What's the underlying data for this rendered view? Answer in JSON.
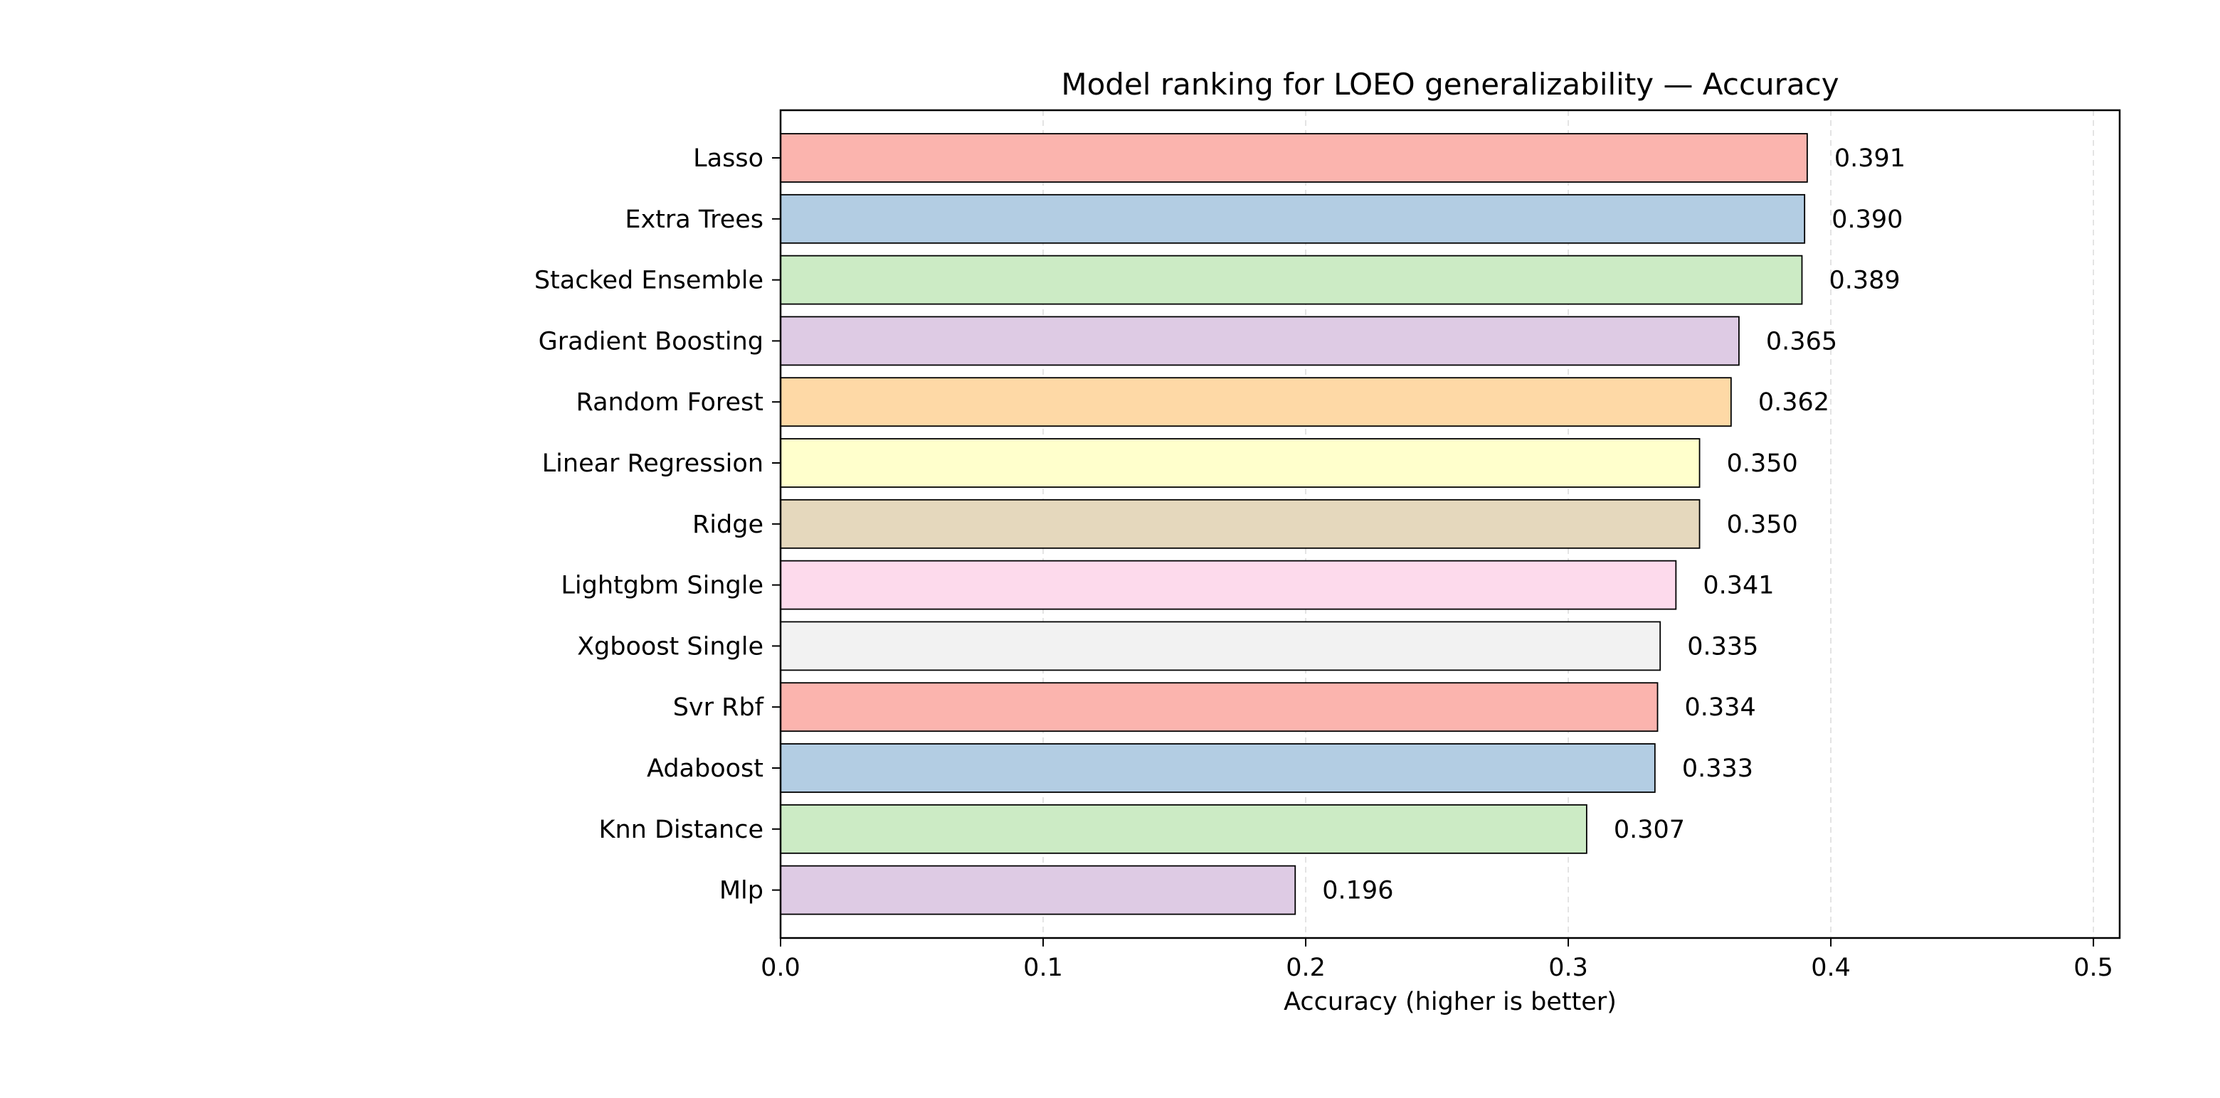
{
  "chart_data": {
    "type": "bar",
    "orientation": "horizontal",
    "title": "Model ranking for LOEO generalizability — Accuracy",
    "xlabel": "Accuracy (higher is better)",
    "ylabel": "",
    "xlim": [
      0.0,
      0.51
    ],
    "xticks": [
      0.0,
      0.1,
      0.2,
      0.3,
      0.4,
      0.5
    ],
    "xtick_labels": [
      "0.0",
      "0.1",
      "0.2",
      "0.3",
      "0.4",
      "0.5"
    ],
    "grid": "vertical dashed",
    "categories": [
      "Lasso",
      "Extra Trees",
      "Stacked Ensemble",
      "Gradient Boosting",
      "Random Forest",
      "Linear Regression",
      "Ridge",
      "Lightgbm Single",
      "Xgboost Single",
      "Svr Rbf",
      "Adaboost",
      "Knn Distance",
      "Mlp"
    ],
    "values": [
      0.391,
      0.39,
      0.389,
      0.365,
      0.362,
      0.35,
      0.35,
      0.341,
      0.335,
      0.334,
      0.333,
      0.307,
      0.196
    ],
    "value_labels": [
      "0.391",
      "0.390",
      "0.389",
      "0.365",
      "0.362",
      "0.350",
      "0.350",
      "0.341",
      "0.335",
      "0.334",
      "0.333",
      "0.307",
      "0.196"
    ],
    "colors": [
      "#fbb4ae",
      "#b3cde3",
      "#ccebc5",
      "#decbe4",
      "#fed9a6",
      "#ffffcc",
      "#e5d8bd",
      "#fddaec",
      "#f2f2f2",
      "#fbb4ae",
      "#b3cde3",
      "#ccebc5",
      "#decbe4"
    ]
  }
}
